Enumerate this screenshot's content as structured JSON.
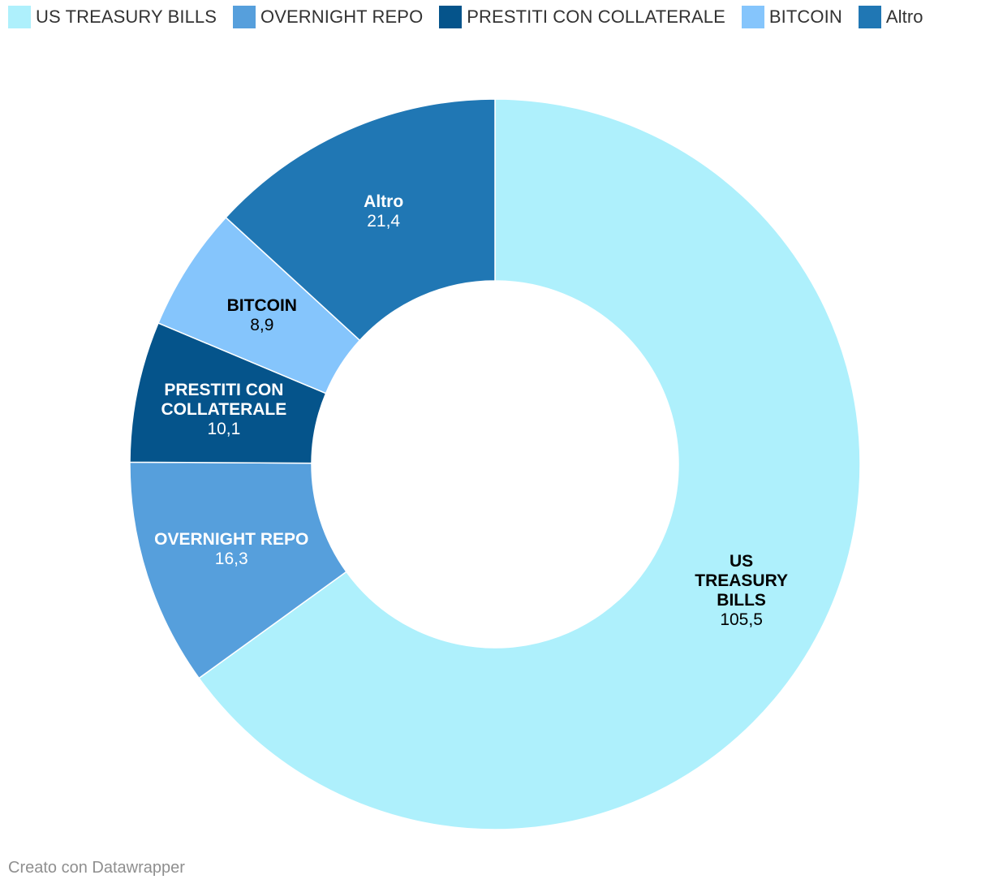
{
  "chart_data": {
    "type": "donut",
    "title": "",
    "start_angle_deg": 0,
    "direction": "clockwise",
    "series": [
      {
        "name": "US TREASURY BILLS",
        "value": 105.5,
        "value_label": "105,5",
        "color": "#aef0fc",
        "text_color": "#000000",
        "label_lines": [
          "US",
          "TREASURY",
          "BILLS"
        ]
      },
      {
        "name": "OVERNIGHT REPO",
        "value": 16.3,
        "value_label": "16,3",
        "color": "#569fdc",
        "text_color": "#ffffff",
        "label_lines": [
          "OVERNIGHT REPO"
        ]
      },
      {
        "name": "PRESTITI CON COLLATERALE",
        "value": 10.1,
        "value_label": "10,1",
        "color": "#05548b",
        "text_color": "#ffffff",
        "label_lines": [
          "PRESTITI CON",
          "COLLATERALE"
        ]
      },
      {
        "name": "BITCOIN",
        "value": 8.9,
        "value_label": "8,9",
        "color": "#85c5fc",
        "text_color": "#000000",
        "label_lines": [
          "BITCOIN"
        ]
      },
      {
        "name": "Altro",
        "value": 21.4,
        "value_label": "21,4",
        "color": "#2077b4",
        "text_color": "#ffffff",
        "label_lines": [
          "Altro"
        ]
      }
    ],
    "legend": {
      "placement": "top-left"
    }
  },
  "footer": {
    "credit": "Creato con Datawrapper"
  }
}
